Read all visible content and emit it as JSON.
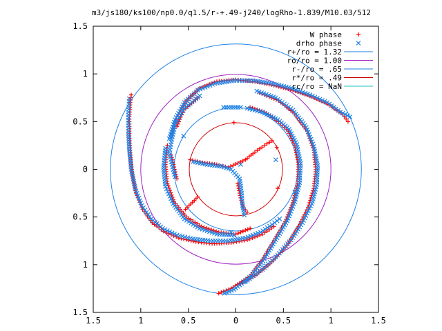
{
  "chart_data": {
    "type": "scatter",
    "title": "m3/js180/ks100/np0.0/q1.5/r-+.49-j240/logRho-1.839/M10.03/512",
    "xlim": [
      -1.5,
      1.5
    ],
    "ylim": [
      -1.5,
      1.5
    ],
    "xticks": [
      "1.5",
      "1",
      "0.5",
      "0",
      "0.5",
      "1",
      "1.5"
    ],
    "yticks": [
      "1.5",
      "1",
      "0.5",
      "0",
      "0.5",
      "1",
      "1.5"
    ],
    "tick_values": [
      -1.5,
      -1.0,
      -0.5,
      0,
      0.5,
      1.0,
      1.5
    ],
    "grid": false,
    "legend_position": "top-right",
    "legend": [
      {
        "label": "W phase",
        "marker": "+",
        "color": "#ff0000"
      },
      {
        "label": "drho phase",
        "marker": "x",
        "color": "#1e82e6"
      },
      {
        "label": "r+/ro = 1.32",
        "marker": "line",
        "color": "#1e82e6"
      },
      {
        "label": "ro/ro = 1.00",
        "marker": "line",
        "color": "#a020c0"
      },
      {
        "label": "r-/ro = .65",
        "marker": "line",
        "color": "#1e82e6"
      },
      {
        "label": "r*/ro = .49",
        "marker": "line",
        "color": "#d00000"
      },
      {
        "label": "rc/ro = NaN",
        "marker": "line",
        "color": "#20c0c0"
      }
    ],
    "circles": [
      {
        "name": "r+/ro = 1.32",
        "r": 1.32,
        "color": "#1e82e6"
      },
      {
        "name": "ro/ro = 1.00",
        "r": 1.0,
        "color": "#a020c0"
      },
      {
        "name": "r-/ro = .65",
        "r": 0.65,
        "color": "#1e82e6"
      },
      {
        "name": "r*/ro = .49",
        "r": 0.49,
        "color": "#d00000"
      }
    ],
    "arms": [
      {
        "r0": 0.02,
        "r1": 1.32,
        "theta0": 100,
        "dtheta": 0
      },
      {
        "r0": 0.02,
        "r1": 1.32,
        "theta0": -20,
        "dtheta": 0
      },
      {
        "r0": 0.02,
        "r1": 1.32,
        "theta0": 220,
        "dtheta": 0
      }
    ],
    "series": [
      {
        "name": "W phase",
        "color": "#ff0000",
        "marker": "+",
        "points": [
          [
            -1.1,
            0.78
          ],
          [
            -1.11,
            0.7
          ],
          [
            -1.12,
            0.55
          ],
          [
            -1.12,
            0.35
          ],
          [
            -1.11,
            0.15
          ],
          [
            -1.09,
            -0.05
          ],
          [
            -1.05,
            -0.25
          ],
          [
            -0.98,
            -0.42
          ],
          [
            -0.88,
            -0.56
          ],
          [
            -0.76,
            -0.65
          ],
          [
            -0.6,
            -0.72
          ],
          [
            -0.42,
            -0.76
          ],
          [
            -0.25,
            -0.78
          ],
          [
            -0.05,
            -0.77
          ],
          [
            0.12,
            -0.74
          ],
          [
            0.28,
            -0.68
          ],
          [
            0.4,
            -0.6
          ],
          [
            -0.72,
            0.25
          ],
          [
            -0.74,
            0.05
          ],
          [
            -0.72,
            -0.15
          ],
          [
            -0.65,
            -0.34
          ],
          [
            -0.52,
            -0.5
          ],
          [
            -0.36,
            -0.6
          ],
          [
            -0.18,
            -0.66
          ],
          [
            0.0,
            -0.68
          ],
          [
            0.15,
            -0.62
          ],
          [
            0.15,
            0.65
          ],
          [
            0.3,
            0.6
          ],
          [
            0.45,
            0.5
          ],
          [
            0.55,
            0.4
          ],
          [
            0.62,
            0.25
          ],
          [
            0.66,
            0.05
          ],
          [
            0.65,
            -0.15
          ],
          [
            0.6,
            -0.35
          ],
          [
            0.52,
            -0.55
          ],
          [
            0.4,
            -0.75
          ],
          [
            0.28,
            -0.95
          ],
          [
            0.15,
            -1.12
          ],
          [
            -0.05,
            -1.25
          ],
          [
            -0.18,
            -1.3
          ],
          [
            -0.68,
            0.35
          ],
          [
            -0.62,
            0.55
          ],
          [
            -0.52,
            0.72
          ],
          [
            -0.38,
            0.85
          ],
          [
            -0.2,
            0.92
          ],
          [
            0.0,
            0.94
          ],
          [
            0.2,
            0.92
          ],
          [
            0.4,
            0.88
          ],
          [
            0.6,
            0.83
          ],
          [
            0.8,
            0.76
          ],
          [
            0.98,
            0.68
          ],
          [
            1.12,
            0.58
          ],
          [
            1.18,
            0.5
          ],
          [
            -0.4,
            0.75
          ],
          [
            -0.55,
            0.62
          ],
          [
            -0.62,
            0.45
          ],
          [
            -0.68,
            0.15
          ],
          [
            -0.62,
            -0.1
          ],
          [
            0.25,
            0.8
          ],
          [
            0.45,
            0.72
          ],
          [
            0.62,
            0.58
          ],
          [
            0.75,
            0.4
          ],
          [
            0.82,
            0.2
          ],
          [
            0.84,
            0.0
          ],
          [
            0.82,
            -0.2
          ],
          [
            0.76,
            -0.4
          ],
          [
            0.66,
            -0.6
          ],
          [
            0.55,
            -0.78
          ],
          [
            0.4,
            -0.95
          ],
          [
            0.22,
            -1.1
          ],
          [
            0.05,
            -1.2
          ],
          [
            -0.48,
            0.1
          ],
          [
            -0.35,
            0.07
          ],
          [
            -0.2,
            0.05
          ],
          [
            -0.08,
            0.02
          ],
          [
            0.1,
            0.1
          ],
          [
            0.2,
            0.18
          ],
          [
            0.3,
            0.25
          ],
          [
            0.38,
            0.3
          ],
          [
            0.02,
            -0.15
          ],
          [
            0.05,
            -0.3
          ],
          [
            0.08,
            -0.4
          ],
          [
            0.12,
            -0.45
          ],
          [
            -0.02,
            0.49
          ],
          [
            0.43,
            0.23
          ],
          [
            0.44,
            -0.2
          ],
          [
            -0.4,
            -0.29
          ],
          [
            -0.53,
            -0.42
          ]
        ]
      },
      {
        "name": "drho phase",
        "color": "#1e82e6",
        "marker": "x",
        "points": [
          [
            -1.12,
            0.74
          ],
          [
            -1.13,
            0.6
          ],
          [
            -1.13,
            0.4
          ],
          [
            -1.12,
            0.2
          ],
          [
            -1.1,
            0.0
          ],
          [
            -1.06,
            -0.2
          ],
          [
            -0.99,
            -0.38
          ],
          [
            -0.89,
            -0.52
          ],
          [
            -0.77,
            -0.62
          ],
          [
            -0.62,
            -0.69
          ],
          [
            -0.45,
            -0.73
          ],
          [
            -0.27,
            -0.75
          ],
          [
            -0.08,
            -0.75
          ],
          [
            0.1,
            -0.72
          ],
          [
            0.26,
            -0.66
          ],
          [
            0.38,
            -0.58
          ],
          [
            0.46,
            -0.52
          ],
          [
            -0.74,
            0.22
          ],
          [
            -0.76,
            0.02
          ],
          [
            -0.74,
            -0.18
          ],
          [
            -0.66,
            -0.36
          ],
          [
            -0.54,
            -0.52
          ],
          [
            -0.38,
            -0.62
          ],
          [
            -0.2,
            -0.68
          ],
          [
            -0.02,
            -0.69
          ],
          [
            0.12,
            0.64
          ],
          [
            0.28,
            0.6
          ],
          [
            0.44,
            0.52
          ],
          [
            0.56,
            0.42
          ],
          [
            0.64,
            0.26
          ],
          [
            0.68,
            0.06
          ],
          [
            0.67,
            -0.14
          ],
          [
            0.62,
            -0.34
          ],
          [
            0.54,
            -0.54
          ],
          [
            0.42,
            -0.74
          ],
          [
            0.3,
            -0.94
          ],
          [
            0.16,
            -1.12
          ],
          [
            -0.02,
            -1.26
          ],
          [
            -0.12,
            -1.3
          ],
          [
            -0.7,
            0.32
          ],
          [
            -0.64,
            0.52
          ],
          [
            -0.54,
            0.7
          ],
          [
            -0.4,
            0.83
          ],
          [
            -0.22,
            0.9
          ],
          [
            -0.02,
            0.93
          ],
          [
            0.18,
            0.93
          ],
          [
            0.38,
            0.9
          ],
          [
            0.58,
            0.85
          ],
          [
            0.78,
            0.78
          ],
          [
            0.96,
            0.7
          ],
          [
            1.1,
            0.6
          ],
          [
            1.2,
            0.55
          ],
          [
            -0.38,
            0.77
          ],
          [
            -0.54,
            0.64
          ],
          [
            -0.64,
            0.47
          ],
          [
            -0.7,
            0.18
          ],
          [
            -0.64,
            -0.08
          ],
          [
            0.22,
            0.82
          ],
          [
            0.42,
            0.75
          ],
          [
            0.6,
            0.62
          ],
          [
            0.74,
            0.44
          ],
          [
            0.82,
            0.24
          ],
          [
            0.86,
            0.04
          ],
          [
            0.85,
            -0.16
          ],
          [
            0.8,
            -0.36
          ],
          [
            0.7,
            -0.56
          ],
          [
            0.58,
            -0.74
          ],
          [
            0.44,
            -0.9
          ],
          [
            0.28,
            -1.05
          ],
          [
            0.1,
            -1.18
          ],
          [
            -0.45,
            0.08
          ],
          [
            -0.3,
            0.05
          ],
          [
            -0.15,
            0.03
          ],
          [
            -0.05,
            0.0
          ],
          [
            0.04,
            -0.1
          ],
          [
            0.06,
            -0.25
          ],
          [
            0.07,
            -0.38
          ],
          [
            0.09,
            -0.48
          ],
          [
            0.05,
            0.05
          ],
          [
            -0.13,
            0.65
          ],
          [
            0.05,
            0.65
          ],
          [
            -0.05,
            -0.66
          ],
          [
            0.62,
            -0.24
          ],
          [
            0.42,
            0.1
          ],
          [
            -0.55,
            0.35
          ]
        ]
      }
    ]
  }
}
